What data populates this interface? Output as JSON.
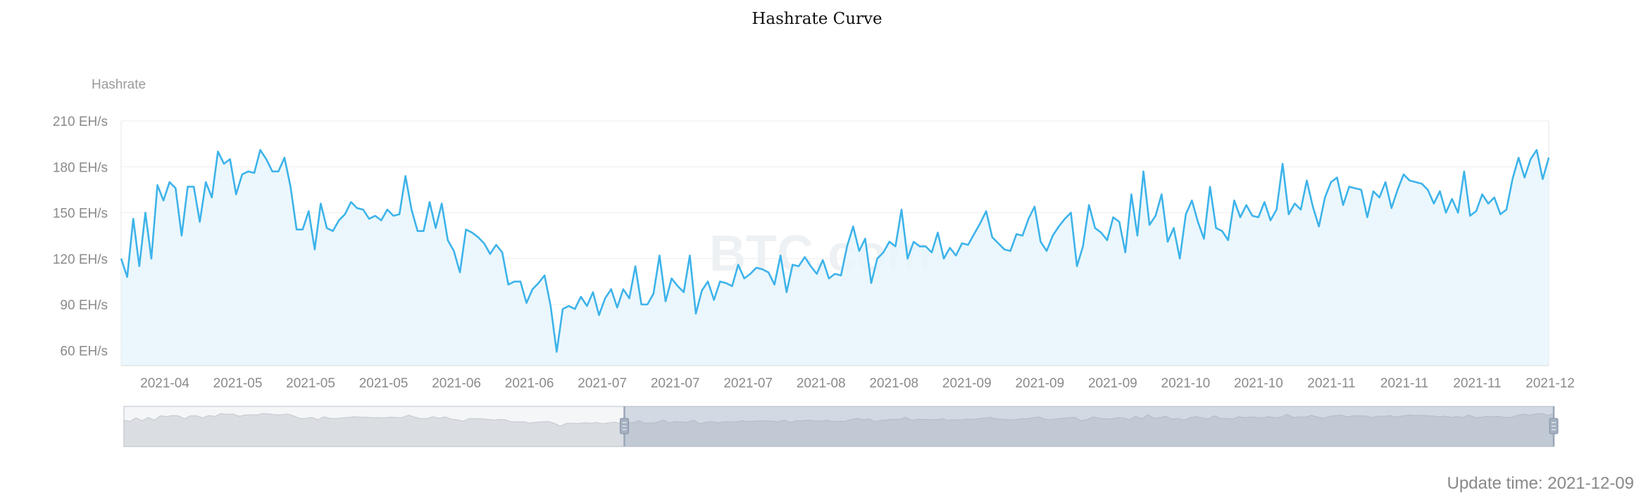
{
  "chart_data": {
    "type": "area",
    "title": "Hashrate Curve",
    "ylabel": "Hashrate",
    "y_unit": "EH/s",
    "ylim": [
      50,
      210
    ],
    "y_ticks": [
      60,
      90,
      120,
      150,
      180,
      210
    ],
    "y_tick_labels": [
      "60 EH/s",
      "90 EH/s",
      "120 EH/s",
      "150 EH/s",
      "180 EH/s",
      "210 EH/s"
    ],
    "x_tick_labels": [
      "2021-04",
      "2021-05",
      "2021-05",
      "2021-05",
      "2021-06",
      "2021-06",
      "2021-07",
      "2021-07",
      "2021-07",
      "2021-08",
      "2021-08",
      "2021-09",
      "2021-09",
      "2021-09",
      "2021-10",
      "2021-10",
      "2021-11",
      "2021-11",
      "2021-11",
      "2021-12"
    ],
    "grid": true,
    "legend": "none",
    "series": [
      {
        "color": "#3db3ea",
        "fill": "#e8f6fb",
        "values": [
          120,
          108,
          146,
          115,
          150,
          120,
          168,
          158,
          170,
          166,
          135,
          167,
          167,
          144,
          170,
          160,
          190,
          182,
          185,
          162,
          175,
          177,
          176,
          191,
          185,
          177,
          177,
          186,
          167,
          139,
          139,
          151,
          126,
          156,
          140,
          138,
          145,
          149,
          157,
          153,
          152,
          146,
          148,
          145,
          152,
          148,
          149,
          174,
          152,
          138,
          138,
          157,
          140,
          156,
          132,
          125,
          111,
          139,
          137,
          134,
          130,
          123,
          129,
          124,
          103,
          105,
          105,
          91,
          100,
          104,
          109,
          89,
          59,
          87,
          89,
          87,
          95,
          89,
          98,
          83,
          94,
          100,
          88,
          100,
          94,
          115,
          90,
          90,
          97,
          122,
          92,
          107,
          102,
          98,
          122,
          84,
          99,
          105,
          93,
          105,
          104,
          102,
          116,
          107,
          110,
          114,
          113,
          111,
          103,
          122,
          98,
          116,
          115,
          121,
          115,
          110,
          119,
          107,
          110,
          109,
          128,
          141,
          125,
          133,
          104,
          120,
          124,
          131,
          128,
          152,
          120,
          131,
          128,
          128,
          124,
          137,
          120,
          127,
          122,
          130,
          129,
          136,
          143,
          151,
          134,
          130,
          126,
          125,
          136,
          135,
          146,
          154,
          131,
          125,
          135,
          141,
          146,
          150,
          115,
          128,
          155,
          140,
          137,
          132,
          147,
          144,
          124,
          162,
          135,
          177,
          142,
          148,
          162,
          131,
          140,
          120,
          149,
          158,
          144,
          133,
          167,
          140,
          138,
          132,
          158,
          147,
          155,
          148,
          147,
          157,
          145,
          152,
          182,
          149,
          156,
          152,
          171,
          154,
          141,
          160,
          170,
          173,
          155,
          167,
          166,
          165,
          147,
          164,
          160,
          170,
          153,
          165,
          175,
          171,
          170,
          169,
          165,
          156,
          164,
          150,
          159,
          150,
          177,
          148,
          151,
          162,
          156,
          160,
          149,
          152,
          172,
          186,
          173,
          185,
          191,
          172,
          186
        ]
      }
    ]
  },
  "zoom_slider": {
    "start": 0.35,
    "end": 1.0
  },
  "watermark": "BTC.com",
  "update_time": "Update time: 2021-12-09"
}
